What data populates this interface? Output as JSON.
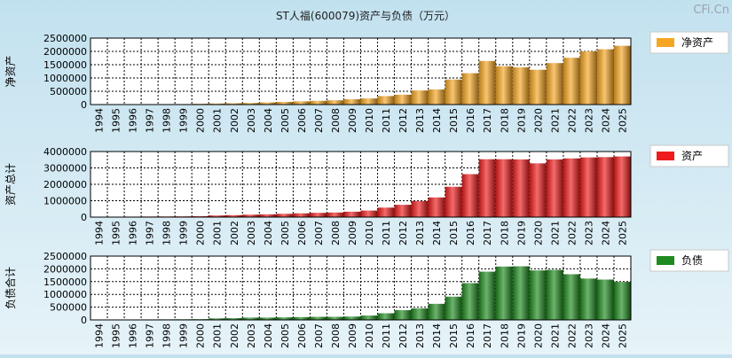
{
  "watermark": "CFi.Cn",
  "title": "ST人福(600079)资产与负债（万元）",
  "chart_data": [
    {
      "type": "bar",
      "ylabel": "净资产",
      "legend": "净资产",
      "color": "#f5a623",
      "ylim": [
        0,
        2500000
      ],
      "yticks": [
        "2500000",
        "2000000",
        "1500000",
        "1000000",
        "500000",
        "0"
      ],
      "categories": [
        "1994",
        "1995",
        "1996",
        "1997",
        "1998",
        "1999",
        "2000",
        "2001",
        "2002",
        "2003",
        "2004",
        "2005",
        "2006",
        "2007",
        "2008",
        "2009",
        "2010",
        "2011",
        "2012",
        "2013",
        "2014",
        "2015",
        "2016",
        "2017",
        "2018",
        "2019",
        "2020",
        "2021",
        "2022",
        "2023",
        "2024",
        "2025"
      ],
      "values": [
        10000,
        12000,
        14000,
        16000,
        18000,
        20000,
        30000,
        40000,
        50000,
        60000,
        80000,
        100000,
        120000,
        140000,
        160000,
        200000,
        230000,
        320000,
        370000,
        530000,
        570000,
        940000,
        1180000,
        1640000,
        1440000,
        1400000,
        1310000,
        1560000,
        1760000,
        2000000,
        2080000,
        2210000
      ]
    },
    {
      "type": "bar",
      "ylabel": "资产总计",
      "legend": "资产",
      "color": "#ee1c1c",
      "ylim": [
        0,
        4000000
      ],
      "yticks": [
        "4000000",
        "3000000",
        "2000000",
        "1000000",
        "0"
      ],
      "categories": [
        "1994",
        "1995",
        "1996",
        "1997",
        "1998",
        "1999",
        "2000",
        "2001",
        "2002",
        "2003",
        "2004",
        "2005",
        "2006",
        "2007",
        "2008",
        "2009",
        "2010",
        "2011",
        "2012",
        "2013",
        "2014",
        "2015",
        "2016",
        "2017",
        "2018",
        "2019",
        "2020",
        "2021",
        "2022",
        "2023",
        "2024",
        "2025"
      ],
      "values": [
        20000,
        25000,
        30000,
        35000,
        40000,
        45000,
        60000,
        100000,
        120000,
        150000,
        170000,
        200000,
        230000,
        260000,
        280000,
        330000,
        400000,
        580000,
        750000,
        980000,
        1200000,
        1850000,
        2620000,
        3530000,
        3530000,
        3520000,
        3280000,
        3520000,
        3580000,
        3640000,
        3660000,
        3700000
      ]
    },
    {
      "type": "bar",
      "ylabel": "负债合计",
      "legend": "负债",
      "color": "#1f8a1f",
      "ylim": [
        0,
        2500000
      ],
      "yticks": [
        "2500000",
        "2000000",
        "1500000",
        "1000000",
        "500000",
        "0"
      ],
      "categories": [
        "1994",
        "1995",
        "1996",
        "1997",
        "1998",
        "1999",
        "2000",
        "2001",
        "2002",
        "2003",
        "2004",
        "2005",
        "2006",
        "2007",
        "2008",
        "2009",
        "2010",
        "2011",
        "2012",
        "2013",
        "2014",
        "2015",
        "2016",
        "2017",
        "2018",
        "2019",
        "2020",
        "2021",
        "2022",
        "2023",
        "2024",
        "2025"
      ],
      "values": [
        10000,
        13000,
        16000,
        19000,
        22000,
        25000,
        30000,
        60000,
        70000,
        90000,
        90000,
        100000,
        110000,
        120000,
        120000,
        130000,
        170000,
        260000,
        380000,
        450000,
        630000,
        910000,
        1440000,
        1890000,
        2090000,
        2100000,
        1940000,
        1960000,
        1790000,
        1620000,
        1580000,
        1490000
      ]
    }
  ]
}
